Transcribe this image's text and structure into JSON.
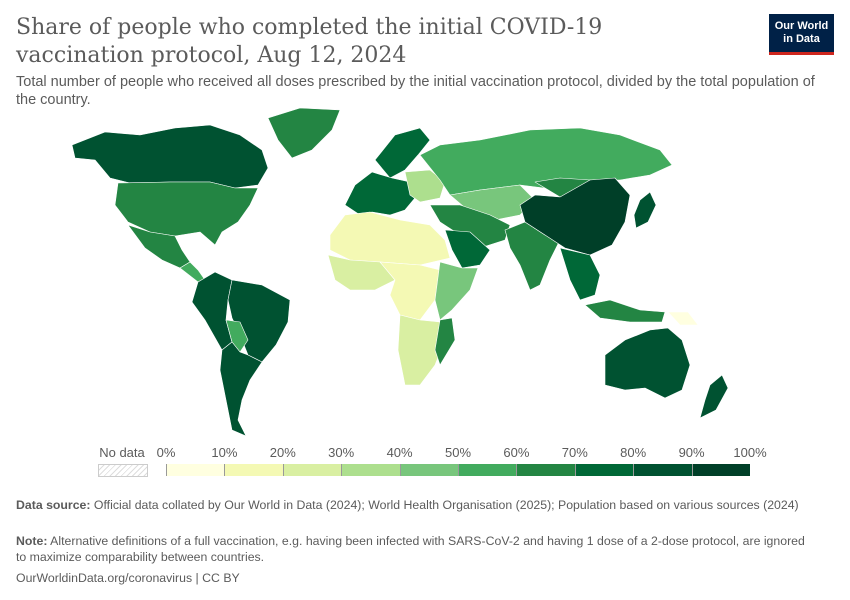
{
  "header": {
    "title": "Share of people who completed the initial COVID-19 vaccination protocol, Aug 12, 2024",
    "subtitle": "Total number of people who received all doses prescribed by the initial vaccination protocol, divided by the total population of the country.",
    "logo_text": "Our World in Data",
    "logo_line1": "Our World",
    "logo_line2": "in Data"
  },
  "legend": {
    "no_data_label": "No data",
    "ticks": [
      "0%",
      "10%",
      "20%",
      "30%",
      "40%",
      "50%",
      "60%",
      "70%",
      "80%",
      "90%",
      "100%"
    ],
    "bins": [
      {
        "from": 0,
        "to": 10,
        "color": "#ffffe0"
      },
      {
        "from": 10,
        "to": 20,
        "color": "#f4f9b4"
      },
      {
        "from": 20,
        "to": 30,
        "color": "#d9efa2"
      },
      {
        "from": 30,
        "to": 40,
        "color": "#addf8e"
      },
      {
        "from": 40,
        "to": 50,
        "color": "#78c67c"
      },
      {
        "from": 50,
        "to": 60,
        "color": "#42ab5e"
      },
      {
        "from": 60,
        "to": 70,
        "color": "#238543"
      },
      {
        "from": 70,
        "to": 80,
        "color": "#006837"
      },
      {
        "from": 80,
        "to": 90,
        "color": "#005231"
      },
      {
        "from": 90,
        "to": 100,
        "color": "#003f28"
      }
    ]
  },
  "map": {
    "regions": [
      {
        "id": "canada",
        "share_pct": 83
      },
      {
        "id": "greenland",
        "share_pct": 68
      },
      {
        "id": "usa",
        "share_pct": 68
      },
      {
        "id": "mexico",
        "share_pct": 62
      },
      {
        "id": "central-america",
        "share_pct": 55
      },
      {
        "id": "brazil",
        "share_pct": 82
      },
      {
        "id": "andes",
        "share_pct": 85
      },
      {
        "id": "bolivia",
        "share_pct": 50
      },
      {
        "id": "argentina",
        "share_pct": 82
      },
      {
        "id": "western-europe",
        "share_pct": 78
      },
      {
        "id": "scandinavia",
        "share_pct": 75
      },
      {
        "id": "eastern-europe",
        "share_pct": 35
      },
      {
        "id": "russia",
        "share_pct": 55
      },
      {
        "id": "central-asia",
        "share_pct": 48
      },
      {
        "id": "middle-east",
        "share_pct": 62
      },
      {
        "id": "saudi-arabia",
        "share_pct": 72
      },
      {
        "id": "north-africa",
        "share_pct": 15
      },
      {
        "id": "west-africa",
        "share_pct": 28
      },
      {
        "id": "central-africa",
        "share_pct": 12
      },
      {
        "id": "east-africa",
        "share_pct": 42
      },
      {
        "id": "southern-africa",
        "share_pct": 22
      },
      {
        "id": "mozambique",
        "share_pct": 62
      },
      {
        "id": "india",
        "share_pct": 66
      },
      {
        "id": "china",
        "share_pct": 90
      },
      {
        "id": "mongolia",
        "share_pct": 65
      },
      {
        "id": "southeast-asia",
        "share_pct": 75
      },
      {
        "id": "indonesia",
        "share_pct": 65
      },
      {
        "id": "japan",
        "share_pct": 82
      },
      {
        "id": "papua-new-guinea",
        "share_pct": 3
      },
      {
        "id": "australia",
        "share_pct": 84
      },
      {
        "id": "new-zealand",
        "share_pct": 80
      }
    ]
  },
  "footer": {
    "source_label": "Data source:",
    "source_text": "Official data collated by Our World in Data (2024); World Health Organisation (2025); Population based on various sources (2024)",
    "note_label": "Note:",
    "note_text": "Alternative definitions of a full vaccination, e.g. having been infected with SARS-CoV-2 and having 1 dose of a 2-dose protocol, are ignored to maximize comparability between countries.",
    "link": "OurWorldinData.org/coronavirus",
    "license": "CC BY"
  }
}
